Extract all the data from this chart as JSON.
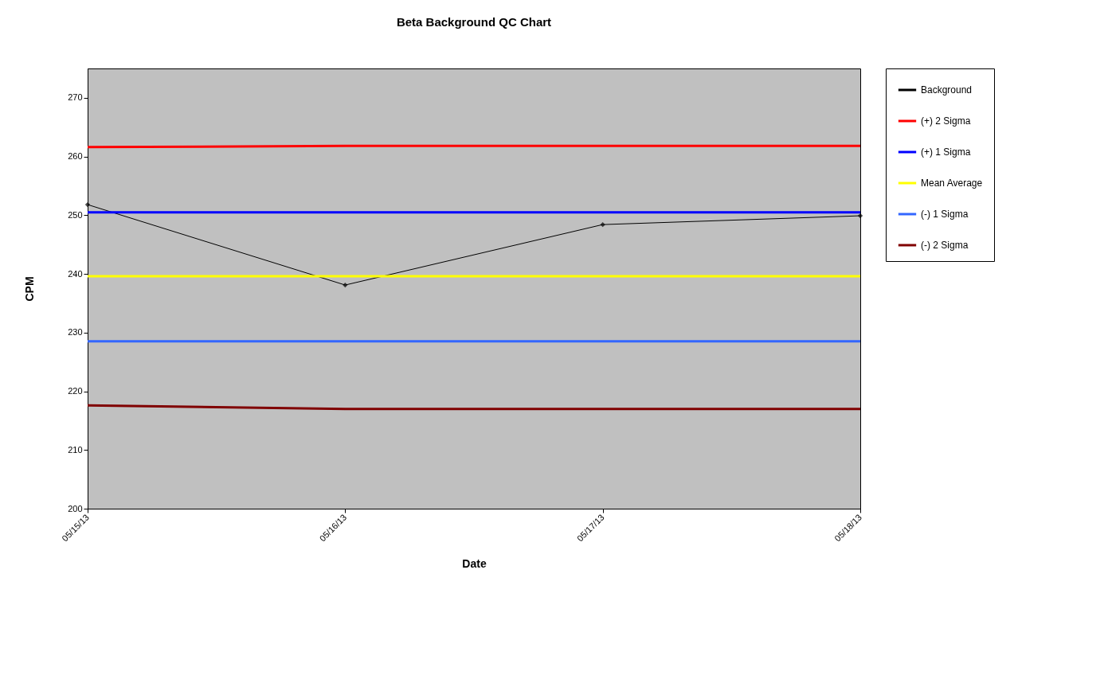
{
  "chart_data": {
    "type": "line",
    "title": "Beta Background QC Chart",
    "xlabel": "Date",
    "ylabel": "CPM",
    "categories": [
      "05/15/13",
      "05/16/13",
      "05/17/13",
      "05/18/13"
    ],
    "series": [
      {
        "name": "Background",
        "color": "#000000",
        "marker": "diamond",
        "values": [
          251.8,
          238.1,
          248.4,
          249.9
        ]
      },
      {
        "name": "(+) 2 Sigma",
        "color": "#ff0000",
        "marker": "none",
        "values": [
          261.6,
          261.8,
          261.8,
          261.8
        ]
      },
      {
        "name": "(+) 1 Sigma",
        "color": "#0000ff",
        "marker": "none",
        "values": [
          250.5,
          250.5,
          250.5,
          250.5
        ]
      },
      {
        "name": "Mean Average",
        "color": "#ffff00",
        "marker": "none",
        "values": [
          239.6,
          239.6,
          239.6,
          239.6
        ]
      },
      {
        "name": "(-) 1 Sigma",
        "color": "#3366ff",
        "marker": "none",
        "values": [
          228.5,
          228.5,
          228.5,
          228.5
        ]
      },
      {
        "name": "(-) 2 Sigma",
        "color": "#800000",
        "marker": "none",
        "values": [
          217.6,
          217.0,
          217.0,
          217.0
        ]
      }
    ],
    "ylim": [
      200,
      275
    ],
    "yticks": [
      200,
      210,
      220,
      230,
      240,
      250,
      260,
      270
    ],
    "grid": false,
    "legend": "right"
  }
}
